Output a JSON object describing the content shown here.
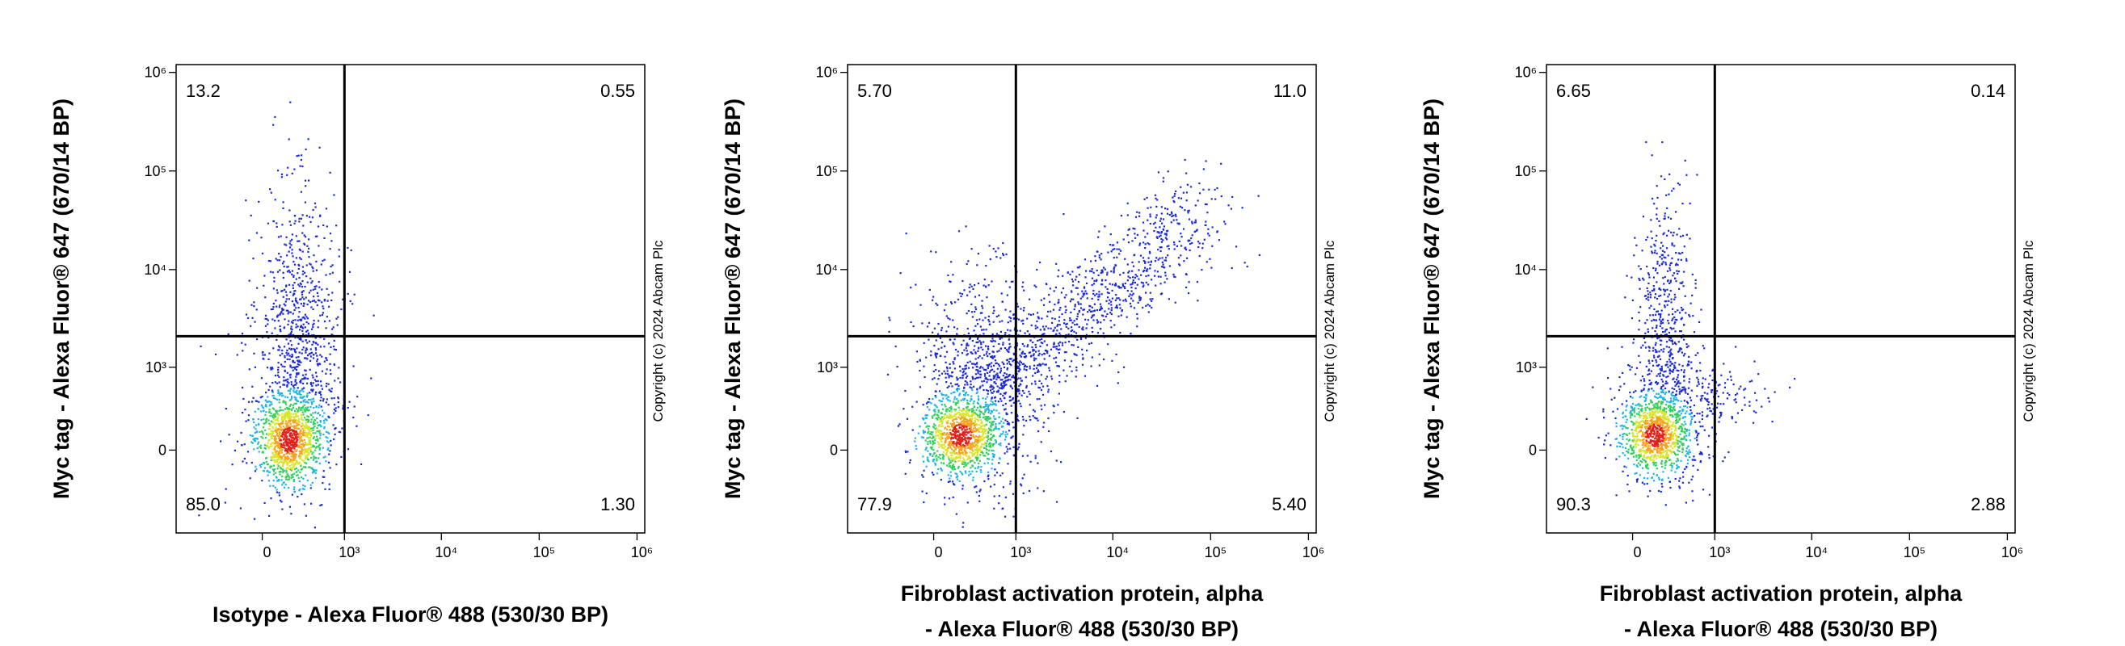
{
  "chart_data": [
    {
      "type": "quadrant",
      "x_label": [
        "Isotype - Alexa Fluor® 488 (530/30 BP)"
      ],
      "y_label": "Myc tag - Alexa Fluor® 647 (670/14 BP)",
      "note": "Copyright (c) 2024 Abcam Plc",
      "values": [
        13.2,
        0.55,
        85.0,
        1.3
      ],
      "value_labels": [
        "13.2",
        "0.55",
        "85.0",
        "1.30"
      ],
      "gates": {
        "x": 1000,
        "y": 2100
      },
      "xlim": [
        -1100,
        1200000
      ],
      "ylim": [
        -1000,
        1200000
      ],
      "xticks": [
        0,
        {
          "value": 1000,
          "label": "10³"
        },
        {
          "value": 10000,
          "label": "10⁴"
        },
        {
          "value": 100000,
          "label": "10⁵"
        },
        {
          "value": 1000000,
          "label": "10⁶"
        }
      ],
      "yticks": [
        0,
        {
          "value": 1000,
          "label": "10³"
        },
        {
          "value": 10000,
          "label": "10⁴"
        },
        {
          "value": 100000,
          "label": "10⁵"
        },
        {
          "value": 1000000,
          "label": "10⁶"
        }
      ]
    },
    {
      "type": "quadrant",
      "x_label": [
        "Fibroblast activation protein, alpha",
        "- Alexa Fluor® 488 (530/30 BP)"
      ],
      "y_label": "Myc tag - Alexa Fluor® 647 (670/14 BP)",
      "note": "Copyright (c) 2024 Abcam Plc",
      "values": [
        5.7,
        11.0,
        77.9,
        5.4
      ],
      "value_labels": [
        "5.70",
        "11.0",
        "77.9",
        "5.40"
      ],
      "gates": {
        "x": 1000,
        "y": 2100
      },
      "xlim": [
        -1100,
        1200000
      ],
      "ylim": [
        -1000,
        1200000
      ],
      "xticks": [
        0,
        {
          "value": 1000,
          "label": "10³"
        },
        {
          "value": 10000,
          "label": "10⁴"
        },
        {
          "value": 100000,
          "label": "10⁵"
        },
        {
          "value": 1000000,
          "label": "10⁶"
        }
      ],
      "yticks": [
        0,
        {
          "value": 1000,
          "label": "10³"
        },
        {
          "value": 10000,
          "label": "10⁴"
        },
        {
          "value": 100000,
          "label": "10⁵"
        },
        {
          "value": 1000000,
          "label": "10⁶"
        }
      ]
    },
    {
      "type": "quadrant",
      "x_label": [
        "Fibroblast activation protein, alpha",
        "- Alexa Fluor® 488 (530/30 BP)"
      ],
      "y_label": "Myc tag - Alexa Fluor® 647 (670/14 BP)",
      "note": "Copyright (c) 2024 Abcam Plc",
      "values": [
        6.65,
        0.14,
        90.3,
        2.88
      ],
      "value_labels": [
        "6.65",
        "0.14",
        "90.3",
        "2.88"
      ],
      "gates": {
        "x": 1000,
        "y": 2100
      },
      "xlim": [
        -1100,
        1200000
      ],
      "ylim": [
        -1000,
        1200000
      ],
      "xticks": [
        0,
        {
          "value": 1000,
          "label": "10³"
        },
        {
          "value": 10000,
          "label": "10⁴"
        },
        {
          "value": 100000,
          "label": "10⁵"
        },
        {
          "value": 1000000,
          "label": "10⁶"
        }
      ],
      "yticks": [
        0,
        {
          "value": 1000,
          "label": "10³"
        },
        {
          "value": 10000,
          "label": "10⁴"
        },
        {
          "value": 100000,
          "label": "10⁵"
        },
        {
          "value": 1000000,
          "label": "10⁶"
        }
      ]
    }
  ]
}
